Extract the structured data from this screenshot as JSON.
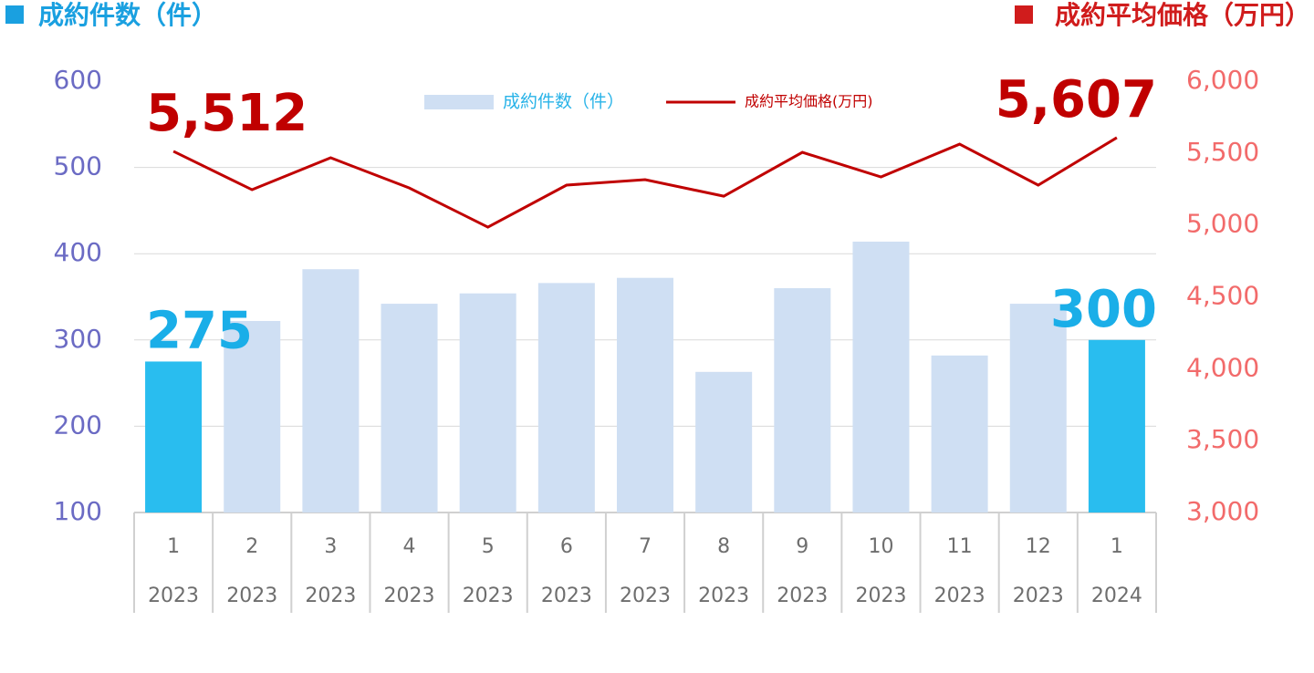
{
  "chart_data": {
    "type": "bar-line",
    "y_label": "成約件数（件）",
    "y2_label": "成約平均価格（万円）",
    "categories": [
      "1",
      "2",
      "3",
      "4",
      "5",
      "6",
      "7",
      "8",
      "9",
      "10",
      "11",
      "12",
      "1"
    ],
    "category_years": [
      "2023",
      "2023",
      "2023",
      "2023",
      "2023",
      "2023",
      "2023",
      "2023",
      "2023",
      "2023",
      "2023",
      "2023",
      "2024"
    ],
    "series": [
      {
        "name": "成約件数（件）",
        "type": "bar",
        "color": "#cfdff3",
        "legend_text_color": "#29b3e8",
        "colors": [
          "#29bdef",
          "#cfdff3",
          "#cfdff3",
          "#cfdff3",
          "#cfdff3",
          "#cfdff3",
          "#cfdff3",
          "#cfdff3",
          "#cfdff3",
          "#cfdff3",
          "#cfdff3",
          "#cfdff3",
          "#29bdef"
        ],
        "values": [
          275,
          322,
          382,
          342,
          354,
          366,
          372,
          263,
          360,
          414,
          282,
          342,
          300
        ],
        "value_labels": [
          "275",
          null,
          null,
          null,
          null,
          null,
          null,
          null,
          null,
          null,
          null,
          null,
          "300"
        ],
        "label_color": "#1aaee8"
      },
      {
        "name": "成約平均価格(万円)",
        "type": "line",
        "axis": "y2",
        "color": "#c00000",
        "legend_text_color": "#c00000",
        "values": [
          5512,
          5245,
          5467,
          5257,
          4985,
          5277,
          5315,
          5200,
          5505,
          5334,
          5562,
          5277,
          5607
        ],
        "value_labels": [
          "5,512",
          null,
          null,
          null,
          null,
          null,
          null,
          null,
          null,
          null,
          null,
          null,
          "5,607"
        ],
        "label_color": "#c00000"
      }
    ],
    "ylim": [
      100,
      600
    ],
    "yticks": [
      100,
      200,
      300,
      400,
      500,
      600
    ],
    "y_tick_color": "#6b6bc4",
    "y2lim": [
      3000,
      6000
    ],
    "y2ticks": [
      {
        "value": 3000,
        "label": "3,000"
      },
      {
        "value": 3500,
        "label": "3,500"
      },
      {
        "value": 4000,
        "label": "4,000"
      },
      {
        "value": 4500,
        "label": "4,500"
      },
      {
        "value": 5000,
        "label": "5,000"
      },
      {
        "value": 5500,
        "label": "5,500"
      },
      {
        "value": 6000,
        "label": "6,000"
      }
    ],
    "y2_tick_color": "#f26b6b",
    "grid": true
  }
}
